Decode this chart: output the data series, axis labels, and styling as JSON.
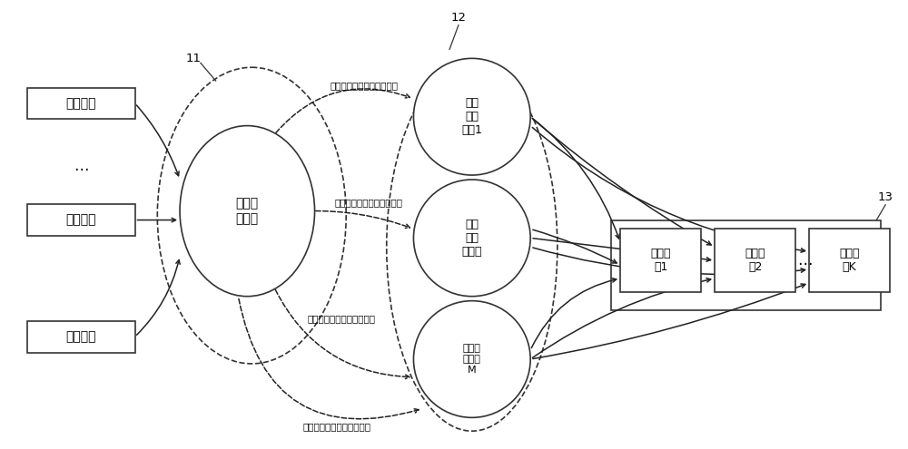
{
  "bg_color": "#ffffff",
  "label_11": "11",
  "label_12": "12",
  "label_13": "13",
  "srv_labels": [
    "服务请求",
    "服务请求",
    "服务请求"
  ],
  "dots": "…",
  "app_label": "应用服\n务流程",
  "dom1_label": "领域\n能力\n模块1",
  "dom2_label": "领域\n能力\n模块２",
  "domM_label": "领域能\n力模块\nM",
  "biz1_label": "业务模\n块1",
  "biz2_label": "业务模\n块2",
  "bizK_label": "业务模\n块K",
  "call_text": "领域过程编排文件进行调用",
  "font_size_main": 10,
  "font_size_small": 9,
  "font_size_tiny": 8,
  "font_size_label": 9.5,
  "font_size_call": 7.5
}
